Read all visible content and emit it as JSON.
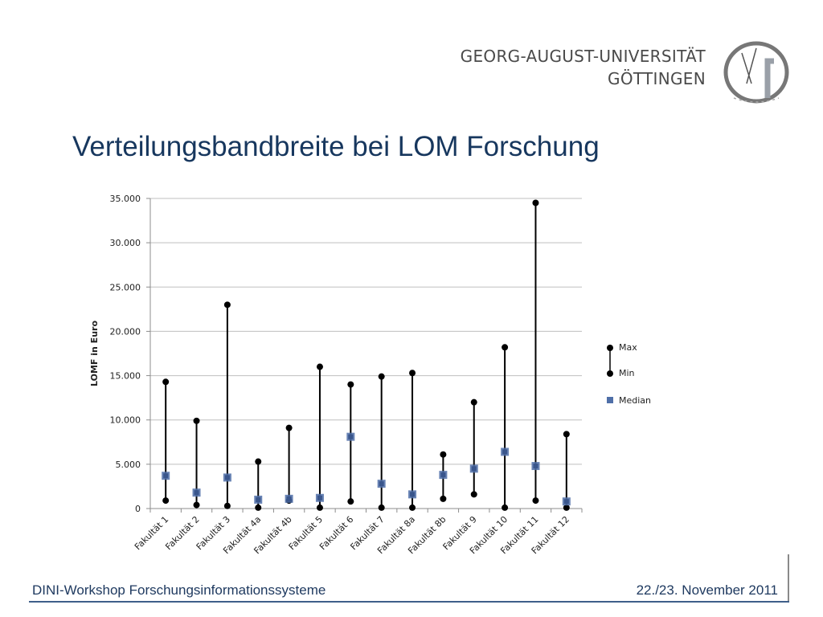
{
  "header": {
    "university_line1": "GEORG-AUGUST-UNIVERSITÄT",
    "university_line2": "GÖTTINGEN",
    "logo_icon": "ga-monogram-seal-icon"
  },
  "slide": {
    "title": "Verteilungsbandbreite bei LOM Forschung"
  },
  "footer": {
    "left": "DINI-Workshop Forschungsinformationssysteme",
    "right": "22./23. November 2011"
  },
  "colors": {
    "title": "#17375e",
    "line": "#000000",
    "median": "#4f6fa8",
    "footer": "#1f3a60"
  },
  "chart_data": {
    "type": "range",
    "title": "",
    "xlabel": "",
    "ylabel": "LOMF in Euro",
    "ylim": [
      0,
      35000
    ],
    "yticks": [
      0,
      5000,
      10000,
      15000,
      20000,
      25000,
      30000,
      35000
    ],
    "ytick_labels": [
      "0",
      "5.000",
      "10.000",
      "15.000",
      "20.000",
      "25.000",
      "30.000",
      "35.000"
    ],
    "grid": true,
    "legend_position": "right",
    "categories": [
      "Fakultät 1",
      "Fakultät 2",
      "Fakultät 3",
      "Fakultät 4a",
      "Fakultät 4b",
      "Fakultät 5",
      "Fakultät 6",
      "Fakultät 7",
      "Fakultät 8a",
      "Fakultät 8b",
      "Fakultät 9",
      "Fakultät 10",
      "Fakultät 11",
      "Fakultät 12"
    ],
    "series": [
      {
        "name": "Max",
        "values": [
          14300,
          9900,
          23000,
          5300,
          9100,
          16000,
          14000,
          14900,
          15300,
          6100,
          12000,
          18200,
          34500,
          8400
        ]
      },
      {
        "name": "Min",
        "values": [
          900,
          400,
          300,
          100,
          900,
          100,
          800,
          100,
          100,
          1100,
          1600,
          100,
          900,
          100
        ]
      },
      {
        "name": "Median",
        "values": [
          3700,
          1800,
          3500,
          1000,
          1100,
          1200,
          8100,
          2800,
          1600,
          3800,
          4500,
          6400,
          4800,
          800
        ]
      }
    ]
  }
}
